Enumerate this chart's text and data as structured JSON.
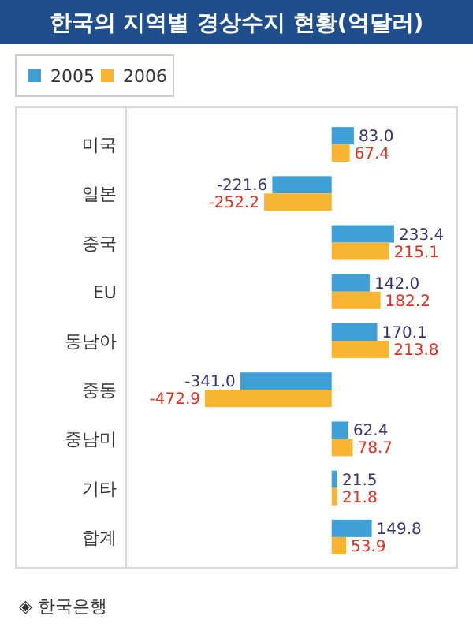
{
  "chart_data": {
    "type": "bar",
    "orientation": "horizontal",
    "title": "한국의 지역별 경상수지 현황(억달러)",
    "categories": [
      "미국",
      "일본",
      "중국",
      "EU",
      "동남아",
      "중동",
      "중남미",
      "기타",
      "합계"
    ],
    "series": [
      {
        "name": "2005",
        "color": "#3fa0d8",
        "values": [
          83.0,
          -221.6,
          233.4,
          142.0,
          170.1,
          -341.0,
          62.4,
          21.5,
          149.8
        ],
        "value_labels": [
          "83.0",
          "-221.6",
          "233.4",
          "142.0",
          "170.1",
          "-341.0",
          "62.4",
          "21.5",
          "149.8"
        ]
      },
      {
        "name": "2006",
        "color": "#f8b531",
        "values": [
          67.4,
          -252.2,
          215.1,
          182.2,
          213.8,
          -472.9,
          78.7,
          21.8,
          53.9
        ],
        "value_labels": [
          "67.4",
          "-252.2",
          "215.1",
          "182.2",
          "213.8",
          "-472.9",
          "78.7",
          "21.8",
          "53.9"
        ]
      }
    ],
    "legend": "top left",
    "grid": false,
    "annotations": [
      "◈ 한국은행"
    ]
  }
}
